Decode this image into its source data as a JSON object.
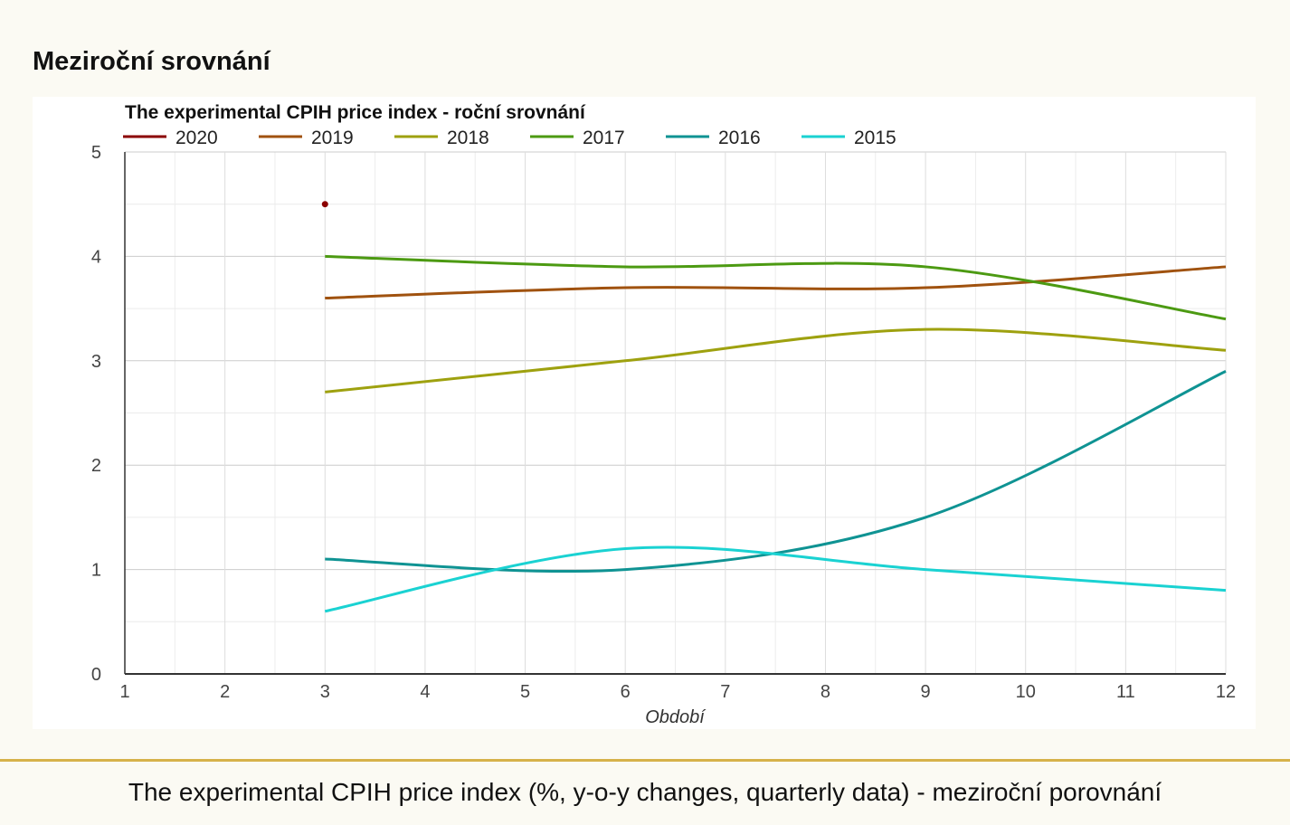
{
  "page": {
    "heading": "Meziroční srovnání",
    "caption": "The experimental CPIH price index (%, y-o-y changes, quarterly data) - meziroční porovnání"
  },
  "chart_data": {
    "type": "line",
    "title": "The experimental CPIH price index - roční srovnání",
    "xlabel": "Období",
    "ylabel": "",
    "xlim": [
      1,
      12
    ],
    "ylim": [
      0,
      5
    ],
    "x_ticks": [
      1,
      2,
      3,
      4,
      5,
      6,
      7,
      8,
      9,
      10,
      11,
      12
    ],
    "y_ticks": [
      0,
      1,
      2,
      3,
      4,
      5
    ],
    "grid": true,
    "minor_grid": true,
    "curve": "smooth",
    "legend_position": "top-left",
    "series": [
      {
        "name": "2020",
        "color": "#8b0000",
        "x": [
          3
        ],
        "values": [
          4.5
        ]
      },
      {
        "name": "2019",
        "color": "#a0520f",
        "x": [
          3,
          6,
          9,
          12
        ],
        "values": [
          3.6,
          3.7,
          3.7,
          3.9
        ]
      },
      {
        "name": "2018",
        "color": "#9ea10f",
        "x": [
          3,
          6,
          9,
          12
        ],
        "values": [
          2.7,
          3.0,
          3.3,
          3.1
        ]
      },
      {
        "name": "2017",
        "color": "#4c9a12",
        "x": [
          3,
          6,
          9,
          12
        ],
        "values": [
          4.0,
          3.9,
          3.9,
          3.4
        ]
      },
      {
        "name": "2016",
        "color": "#0f9393",
        "x": [
          3,
          6,
          9,
          12
        ],
        "values": [
          1.1,
          1.0,
          1.5,
          2.9
        ]
      },
      {
        "name": "2015",
        "color": "#1ad2d2",
        "x": [
          3,
          6,
          9,
          12
        ],
        "values": [
          0.6,
          1.2,
          1.0,
          0.8
        ]
      }
    ]
  }
}
